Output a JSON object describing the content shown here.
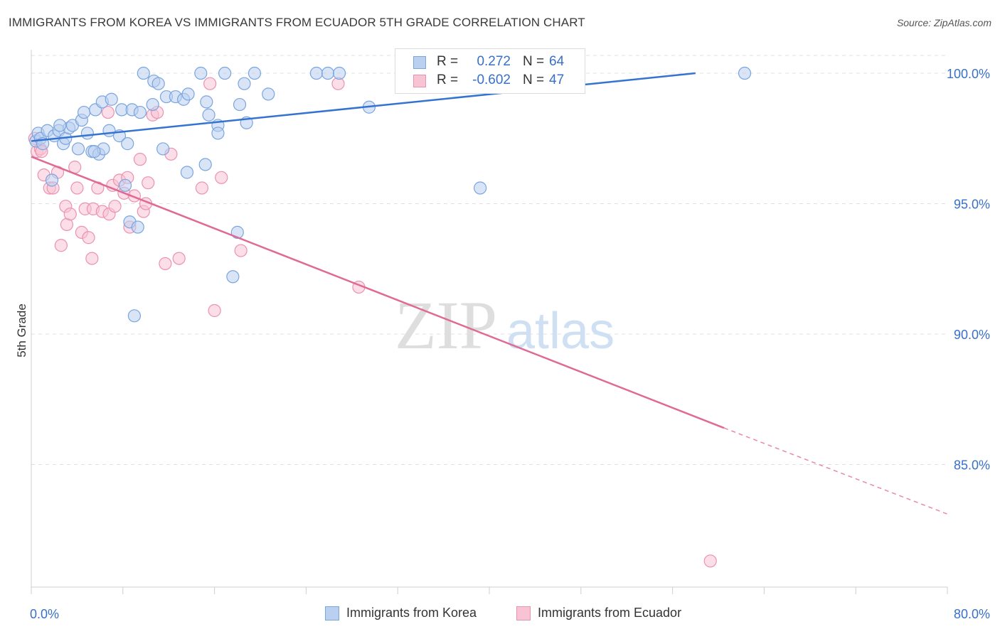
{
  "title": "IMMIGRANTS FROM KOREA VS IMMIGRANTS FROM ECUADOR 5TH GRADE CORRELATION CHART",
  "source": "Source: ZipAtlas.com",
  "watermark": {
    "zip": "ZIP",
    "atlas": "atlas"
  },
  "legend": {
    "korea": {
      "r_label": "R =",
      "r_value": "0.272",
      "n_label": "N =",
      "n_value": "64"
    },
    "ecuador": {
      "r_label": "R =",
      "r_value": "-0.602",
      "n_label": "N =",
      "n_value": "47"
    }
  },
  "bottom_legend": {
    "korea": "Immigrants from Korea",
    "ecuador": "Immigrants from Ecuador"
  },
  "colors": {
    "korea_fill": "#b9d0f0",
    "korea_stroke": "#7aa5de",
    "korea_line": "#3474d0",
    "ecuador_fill": "#f8c3d3",
    "ecuador_stroke": "#eb92b0",
    "ecuador_line": "#e06a96",
    "tick_label": "#3870c8",
    "grid": "#e0e0e0"
  },
  "chart_data": {
    "type": "scatter",
    "title": "IMMIGRANTS FROM KOREA VS IMMIGRANTS FROM ECUADOR 5TH GRADE CORRELATION CHART",
    "xlabel": "",
    "ylabel": "5th Grade",
    "xlim": [
      0,
      80
    ],
    "ylim": [
      80.3,
      100.9
    ],
    "x_tick_labels": [
      "0.0%",
      "80.0%"
    ],
    "y_ticks": [
      85,
      90,
      95,
      100
    ],
    "y_tick_labels": [
      "85.0%",
      "90.0%",
      "95.0%",
      "100.0%"
    ],
    "grid": true,
    "legend_position": "top-center",
    "series": [
      {
        "name": "Immigrants from Korea",
        "points": [
          [
            0.4,
            97.4
          ],
          [
            0.6,
            97.7
          ],
          [
            0.8,
            97.5
          ],
          [
            1.0,
            97.3
          ],
          [
            1.4,
            97.8
          ],
          [
            1.8,
            95.9
          ],
          [
            2.0,
            97.6
          ],
          [
            2.4,
            97.8
          ],
          [
            2.8,
            97.3
          ],
          [
            3.0,
            97.5
          ],
          [
            3.3,
            97.9
          ],
          [
            3.6,
            98.0
          ],
          [
            4.1,
            97.1
          ],
          [
            4.4,
            98.2
          ],
          [
            4.6,
            98.5
          ],
          [
            4.9,
            97.7
          ],
          [
            5.3,
            97.0
          ],
          [
            5.6,
            98.6
          ],
          [
            5.9,
            96.9
          ],
          [
            6.3,
            97.1
          ],
          [
            6.2,
            98.9
          ],
          [
            6.8,
            97.8
          ],
          [
            7.0,
            99.0
          ],
          [
            7.7,
            97.6
          ],
          [
            7.9,
            98.6
          ],
          [
            8.4,
            97.3
          ],
          [
            8.8,
            98.6
          ],
          [
            8.6,
            94.3
          ],
          [
            8.2,
            95.7
          ],
          [
            9.3,
            94.1
          ],
          [
            9.0,
            90.7
          ],
          [
            9.8,
            100.0
          ],
          [
            10.7,
            99.7
          ],
          [
            11.1,
            99.6
          ],
          [
            10.6,
            98.8
          ],
          [
            11.5,
            97.1
          ],
          [
            11.8,
            99.1
          ],
          [
            12.6,
            99.1
          ],
          [
            13.3,
            99.0
          ],
          [
            13.7,
            99.2
          ],
          [
            13.6,
            96.2
          ],
          [
            14.8,
            100.0
          ],
          [
            15.3,
            98.9
          ],
          [
            15.2,
            96.5
          ],
          [
            15.5,
            98.4
          ],
          [
            16.3,
            98.0
          ],
          [
            16.3,
            97.7
          ],
          [
            16.9,
            100.0
          ],
          [
            17.6,
            92.2
          ],
          [
            18.0,
            93.9
          ],
          [
            18.2,
            98.8
          ],
          [
            18.6,
            99.6
          ],
          [
            18.8,
            98.1
          ],
          [
            19.5,
            100.0
          ],
          [
            20.7,
            99.2
          ],
          [
            24.9,
            100.0
          ],
          [
            25.9,
            100.0
          ],
          [
            26.9,
            100.0
          ],
          [
            29.5,
            98.7
          ],
          [
            39.2,
            95.6
          ],
          [
            62.3,
            100.0
          ],
          [
            2.5,
            98.0
          ],
          [
            9.5,
            98.5
          ],
          [
            5.5,
            97.0
          ]
        ],
        "trendline": {
          "x": [
            0,
            58
          ],
          "y": [
            97.4,
            100.0
          ]
        }
      },
      {
        "name": "Immigrants from Ecuador",
        "points": [
          [
            0.3,
            97.5
          ],
          [
            0.5,
            97.0
          ],
          [
            0.8,
            97.1
          ],
          [
            1.1,
            96.1
          ],
          [
            1.6,
            95.6
          ],
          [
            1.9,
            95.6
          ],
          [
            2.3,
            96.2
          ],
          [
            2.6,
            93.4
          ],
          [
            3.0,
            94.9
          ],
          [
            3.1,
            94.2
          ],
          [
            3.4,
            94.6
          ],
          [
            3.8,
            96.4
          ],
          [
            4.0,
            95.6
          ],
          [
            4.4,
            93.9
          ],
          [
            4.7,
            94.8
          ],
          [
            5.0,
            93.7
          ],
          [
            5.3,
            92.9
          ],
          [
            5.4,
            94.8
          ],
          [
            5.8,
            95.6
          ],
          [
            6.2,
            94.7
          ],
          [
            6.7,
            98.5
          ],
          [
            6.8,
            94.6
          ],
          [
            7.1,
            95.7
          ],
          [
            7.3,
            94.9
          ],
          [
            7.7,
            95.9
          ],
          [
            8.1,
            95.4
          ],
          [
            8.4,
            96.0
          ],
          [
            8.6,
            94.1
          ],
          [
            9.0,
            95.3
          ],
          [
            9.5,
            96.7
          ],
          [
            9.8,
            94.7
          ],
          [
            10.0,
            95.0
          ],
          [
            10.2,
            95.8
          ],
          [
            10.6,
            98.4
          ],
          [
            11.0,
            98.5
          ],
          [
            11.7,
            92.7
          ],
          [
            12.2,
            96.9
          ],
          [
            12.9,
            92.9
          ],
          [
            14.9,
            95.6
          ],
          [
            15.6,
            99.6
          ],
          [
            16.0,
            90.9
          ],
          [
            16.6,
            96.0
          ],
          [
            18.3,
            93.2
          ],
          [
            26.8,
            99.6
          ],
          [
            28.6,
            91.8
          ],
          [
            59.3,
            81.3
          ],
          [
            0.9,
            97.0
          ]
        ],
        "trendline": {
          "x": [
            0,
            60.5
          ],
          "y": [
            96.8,
            86.4
          ]
        },
        "trendline_extension": {
          "x": [
            60.5,
            80
          ],
          "y": [
            86.4,
            83.1
          ]
        }
      }
    ]
  }
}
